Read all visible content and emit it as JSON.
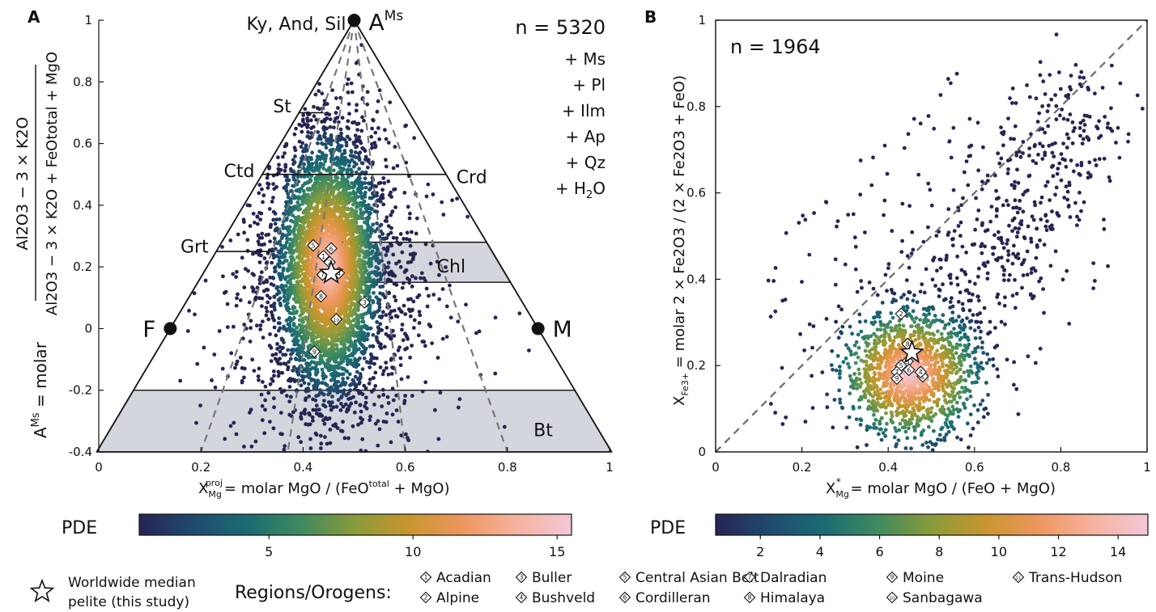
{
  "chart_data": [
    {
      "type": "scatter",
      "panel": "A",
      "title": "",
      "annotation_n": "n = 5320",
      "xlabel": {
        "pre": "X",
        "sub": "Mg",
        "sup": "proj",
        "rest": "= molar MgO / (FeO",
        "sup2": "total",
        "rest2": " + MgO)"
      },
      "ylabel": {
        "pre": "A",
        "sup": "Ms",
        "rest": " = molar"
      },
      "ylabel_frac_top": "Al2O3 − 3 × K2O",
      "ylabel_frac_bottom": "Al2O3 − 3 × K2O + FeOtotal + MgO",
      "xlim": [
        0,
        1
      ],
      "ylim": [
        -0.4,
        1
      ],
      "xticks": [
        "0",
        "0.2",
        "0.4",
        "0.6",
        "0.8",
        "1"
      ],
      "yticks": [
        "-0.4",
        "-0.2",
        "0",
        "0.2",
        "0.4",
        "0.6",
        "0.8",
        "1"
      ],
      "vertices": [
        {
          "label": "A",
          "sup": "Ms",
          "x": 0.5,
          "y": 1.0
        },
        {
          "label": "F",
          "x": 0.14,
          "y": 0.0
        },
        {
          "label": "M",
          "x": 0.86,
          "y": 0.0
        }
      ],
      "apex_label": "Ky, And, Sil",
      "phase_labels": [
        "St",
        "Ctd",
        "Crd",
        "Grt",
        "Chl",
        "Bt"
      ],
      "phase_lines": [
        {
          "label": "St",
          "y": 0.7,
          "x_to": 0.44
        },
        {
          "label": "Ctd",
          "y": 0.5,
          "x_to": 0.68
        },
        {
          "label": "Grt",
          "y": 0.25,
          "x_to": 0.345
        }
      ],
      "shaded_bands": [
        {
          "label": "Chl",
          "ylow": 0.15,
          "yhigh": 0.28,
          "xmin": 0.45
        },
        {
          "label": "Bt",
          "ylow": -0.4,
          "yhigh": -0.2,
          "xmin": 0.0
        }
      ],
      "assemblage": [
        "+ Ms",
        "+ Pl",
        "+ Ilm",
        "+ Ap",
        "+ Qz",
        "+ H2O"
      ],
      "density_center": {
        "x": 0.45,
        "y": 0.2,
        "sx": 0.045,
        "sy": 0.2
      },
      "median_star": {
        "x": 0.455,
        "y": 0.18
      },
      "region_markers": [
        {
          "id": "1",
          "x": 0.44,
          "y": 0.235
        },
        {
          "id": "2",
          "x": 0.452,
          "y": 0.215
        },
        {
          "id": "3",
          "x": 0.52,
          "y": 0.085
        },
        {
          "id": "4",
          "x": 0.47,
          "y": 0.18
        },
        {
          "id": "5",
          "x": 0.42,
          "y": 0.27
        },
        {
          "id": "6",
          "x": 0.455,
          "y": 0.26
        },
        {
          "id": "7",
          "x": 0.438,
          "y": 0.175
        },
        {
          "id": "8",
          "x": 0.435,
          "y": 0.105
        },
        {
          "id": "9",
          "x": 0.422,
          "y": -0.075
        },
        {
          "id": "10",
          "x": 0.465,
          "y": 0.03
        }
      ],
      "colorbar": {
        "label": "PDE",
        "ticks": [
          "5",
          "10",
          "15"
        ],
        "min": 0.5,
        "max": 15.5
      }
    },
    {
      "type": "scatter",
      "panel": "B",
      "title": "",
      "annotation_n": "n = 1964",
      "xlabel": {
        "pre": "X",
        "sub": "Mg",
        "sup": "*",
        "rest": " = molar MgO / (FeO + MgO)"
      },
      "ylabel": {
        "pre": "X",
        "sub": "Fe3+",
        "rest": " = molar 2 × Fe2O3 / (2 × Fe2O3 + FeO)"
      },
      "xlim": [
        0,
        1
      ],
      "ylim": [
        0,
        1
      ],
      "xticks": [
        "0",
        "0.2",
        "0.4",
        "0.6",
        "0.8",
        "1"
      ],
      "yticks": [
        "0",
        "0.2",
        "0.4",
        "0.6",
        "0.8",
        "1"
      ],
      "reference_line": "1:1",
      "density_center": {
        "x": 0.45,
        "y": 0.18,
        "sx": 0.075,
        "sy": 0.07
      },
      "median_star": {
        "x": 0.455,
        "y": 0.23
      },
      "region_markers": [
        {
          "id": "1",
          "x": 0.48,
          "y": 0.175
        },
        {
          "id": "2",
          "x": 0.43,
          "y": 0.32
        },
        {
          "id": "3",
          "x": 0.445,
          "y": 0.21
        },
        {
          "id": "4",
          "x": 0.475,
          "y": 0.185
        },
        {
          "id": "5",
          "x": 0.43,
          "y": 0.2
        },
        {
          "id": "6",
          "x": 0.448,
          "y": 0.19
        },
        {
          "id": "7",
          "x": 0.42,
          "y": 0.185
        },
        {
          "id": "8",
          "x": 0.445,
          "y": 0.25
        },
        {
          "id": "9",
          "x": 0.42,
          "y": 0.17
        }
      ],
      "colorbar": {
        "label": "PDE",
        "ticks": [
          "2",
          "4",
          "6",
          "8",
          "10",
          "12",
          "14"
        ],
        "min": 0.5,
        "max": 15.0
      }
    }
  ],
  "legend": {
    "star_label_1": "Worldwide median",
    "star_label_2": "pelite (this study)",
    "regions_title": "Regions/Orogens:",
    "regions": [
      {
        "id": "1",
        "name": "Acadian"
      },
      {
        "id": "2",
        "name": "Alpine"
      },
      {
        "id": "3",
        "name": "Buller"
      },
      {
        "id": "4",
        "name": "Bushveld"
      },
      {
        "id": "5",
        "name": "Central Asian Belt"
      },
      {
        "id": "6",
        "name": "Cordilleran"
      },
      {
        "id": "7",
        "name": "Dalradian"
      },
      {
        "id": "8",
        "name": "Himalaya"
      },
      {
        "id": "9",
        "name": "Moine"
      },
      {
        "id": "10",
        "name": "Sanbagawa"
      },
      {
        "id": "11",
        "name": "Trans-Hudson"
      }
    ]
  },
  "colormap": [
    "#262453",
    "#1f4b6e",
    "#1b6b73",
    "#3f8b5e",
    "#8a9a3a",
    "#c9952e",
    "#ee9760",
    "#f6b3a0",
    "#f2c7d7"
  ]
}
